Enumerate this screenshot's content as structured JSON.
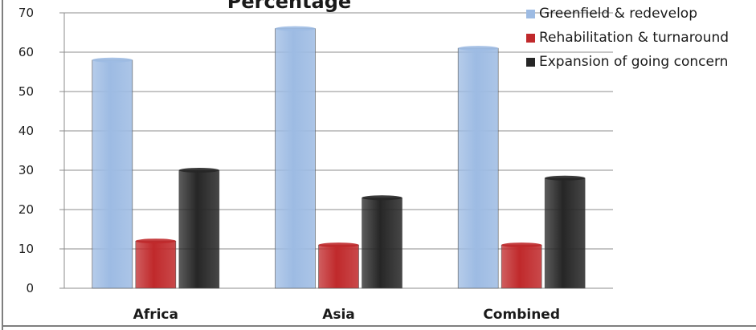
{
  "chart_data": {
    "type": "bar",
    "title": "Percentage",
    "categories": [
      "Africa",
      "Asia",
      "Combined"
    ],
    "series": [
      {
        "name": "Greenfield & redevelop",
        "values": [
          58,
          66,
          61
        ],
        "color": "#9dbbe3"
      },
      {
        "name": "Rehabilitation & turnaround",
        "values": [
          12,
          11,
          11
        ],
        "color": "#c0292b"
      },
      {
        "name": "Expansion of going concern",
        "values": [
          30,
          23,
          28
        ],
        "color": "#262626"
      }
    ],
    "ylim": [
      0,
      70
    ],
    "yticks": [
      0,
      10,
      20,
      30,
      40,
      50,
      60,
      70
    ],
    "grid": true,
    "legend_position": "right"
  }
}
